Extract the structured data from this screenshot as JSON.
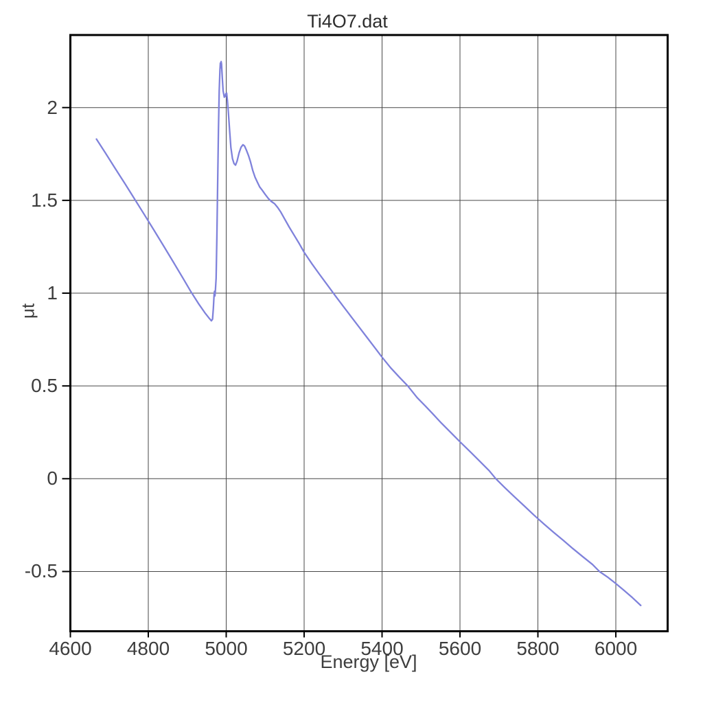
{
  "chart": {
    "title": "Ti4O7.dat",
    "xlabel": "Energy [eV]",
    "ylabel": "μt"
  },
  "chart_data": {
    "type": "line",
    "title": "Ti4O7.dat",
    "xlabel": "Energy [eV]",
    "ylabel": "μt",
    "xlim": [
      4600,
      6133
    ],
    "ylim": [
      -0.822,
      2.391
    ],
    "x_ticks": [
      4600,
      4800,
      5000,
      5200,
      5400,
      5600,
      5800,
      6000
    ],
    "y_ticks": [
      -0.5,
      0,
      0.5,
      1,
      1.5,
      2
    ],
    "grid": true,
    "legend_position": "none",
    "line_color": "#7f82db",
    "grid_color": "#474747",
    "axis_color": "#000000",
    "series": [
      {
        "name": "Ti4O7.dat",
        "points": [
          [
            4667,
            1.83
          ],
          [
            4690,
            1.755
          ],
          [
            4715,
            1.672
          ],
          [
            4740,
            1.59
          ],
          [
            4765,
            1.507
          ],
          [
            4790,
            1.423
          ],
          [
            4815,
            1.338
          ],
          [
            4840,
            1.252
          ],
          [
            4865,
            1.165
          ],
          [
            4890,
            1.077
          ],
          [
            4910,
            1.006
          ],
          [
            4930,
            0.94
          ],
          [
            4945,
            0.895
          ],
          [
            4955,
            0.868
          ],
          [
            4962,
            0.851
          ],
          [
            4965,
            0.86
          ],
          [
            4967,
            0.92
          ],
          [
            4969,
            0.995
          ],
          [
            4970,
            1.01
          ],
          [
            4971,
            0.985
          ],
          [
            4972,
            1.005
          ],
          [
            4974,
            1.08
          ],
          [
            4976,
            1.3
          ],
          [
            4978,
            1.58
          ],
          [
            4980,
            1.88
          ],
          [
            4982,
            2.09
          ],
          [
            4984,
            2.205
          ],
          [
            4985,
            2.24
          ],
          [
            4986,
            2.215
          ],
          [
            4987,
            2.248
          ],
          [
            4988,
            2.235
          ],
          [
            4990,
            2.16
          ],
          [
            4992,
            2.09
          ],
          [
            4995,
            2.056
          ],
          [
            4997,
            2.06
          ],
          [
            4999,
            2.075
          ],
          [
            5001,
            2.078
          ],
          [
            5003,
            2.04
          ],
          [
            5006,
            1.96
          ],
          [
            5009,
            1.87
          ],
          [
            5012,
            1.785
          ],
          [
            5016,
            1.725
          ],
          [
            5020,
            1.698
          ],
          [
            5024,
            1.69
          ],
          [
            5028,
            1.712
          ],
          [
            5033,
            1.755
          ],
          [
            5038,
            1.786
          ],
          [
            5043,
            1.8
          ],
          [
            5047,
            1.793
          ],
          [
            5052,
            1.77
          ],
          [
            5057,
            1.742
          ],
          [
            5062,
            1.71
          ],
          [
            5068,
            1.662
          ],
          [
            5074,
            1.625
          ],
          [
            5080,
            1.598
          ],
          [
            5086,
            1.572
          ],
          [
            5092,
            1.556
          ],
          [
            5100,
            1.532
          ],
          [
            5108,
            1.51
          ],
          [
            5116,
            1.494
          ],
          [
            5124,
            1.482
          ],
          [
            5132,
            1.462
          ],
          [
            5140,
            1.437
          ],
          [
            5150,
            1.4
          ],
          [
            5162,
            1.355
          ],
          [
            5175,
            1.31
          ],
          [
            5188,
            1.265
          ],
          [
            5200,
            1.22
          ],
          [
            5220,
            1.158
          ],
          [
            5240,
            1.1
          ],
          [
            5260,
            1.043
          ],
          [
            5280,
            0.986
          ],
          [
            5300,
            0.93
          ],
          [
            5320,
            0.875
          ],
          [
            5340,
            0.82
          ],
          [
            5360,
            0.765
          ],
          [
            5380,
            0.71
          ],
          [
            5400,
            0.655
          ],
          [
            5422,
            0.598
          ],
          [
            5444,
            0.548
          ],
          [
            5466,
            0.5
          ],
          [
            5490,
            0.437
          ],
          [
            5511,
            0.392
          ],
          [
            5530,
            0.35
          ],
          [
            5550,
            0.305
          ],
          [
            5575,
            0.252
          ],
          [
            5600,
            0.199
          ],
          [
            5625,
            0.148
          ],
          [
            5650,
            0.096
          ],
          [
            5675,
            0.043
          ],
          [
            5692,
            0.0
          ],
          [
            5715,
            -0.048
          ],
          [
            5740,
            -0.098
          ],
          [
            5765,
            -0.147
          ],
          [
            5790,
            -0.196
          ],
          [
            5815,
            -0.243
          ],
          [
            5840,
            -0.288
          ],
          [
            5865,
            -0.332
          ],
          [
            5890,
            -0.377
          ],
          [
            5915,
            -0.42
          ],
          [
            5940,
            -0.462
          ],
          [
            5958,
            -0.5
          ],
          [
            5980,
            -0.532
          ],
          [
            6000,
            -0.565
          ],
          [
            6020,
            -0.6
          ],
          [
            6042,
            -0.64
          ],
          [
            6064,
            -0.683
          ]
        ]
      }
    ]
  }
}
